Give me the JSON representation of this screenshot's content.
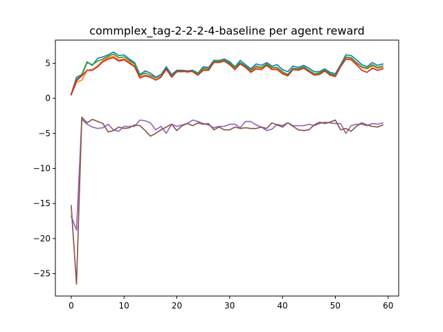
{
  "chart_data": {
    "type": "line",
    "title": "commplex_tag-2-2-2-4-baseline per agent reward",
    "xlabel": "",
    "ylabel": "",
    "xlim": [
      -3,
      62
    ],
    "ylim": [
      -28.2,
      8.3
    ],
    "xticks": [
      0,
      10,
      20,
      30,
      40,
      50,
      60
    ],
    "yticks": [
      5,
      0,
      -5,
      -10,
      -15,
      -20,
      -25
    ],
    "grid": false,
    "colors": [
      "#1f77b4",
      "#ff7f0e",
      "#2ca02c",
      "#d62728",
      "#9467bd",
      "#8c564b"
    ],
    "series": [
      {
        "color": "#1f77b4",
        "values": [
          0.6,
          3.0,
          3.4,
          5.2,
          4.7,
          5.7,
          5.9,
          6.2,
          6.6,
          6.1,
          6.2,
          5.6,
          5.1,
          3.4,
          3.9,
          3.6,
          3.0,
          3.4,
          4.5,
          3.4,
          4.0,
          4.0,
          3.9,
          4.0,
          3.6,
          4.5,
          4.4,
          5.4,
          5.4,
          5.6,
          5.2,
          4.5,
          5.4,
          4.8,
          4.2,
          4.9,
          4.7,
          5.1,
          4.6,
          4.8,
          4.1,
          3.8,
          4.6,
          4.4,
          4.7,
          4.3,
          3.8,
          3.8,
          4.2,
          3.7,
          3.5,
          4.8,
          6.2,
          6.1,
          5.5,
          4.8,
          4.5,
          5.1,
          4.7,
          4.9
        ]
      },
      {
        "color": "#ff7f0e",
        "values": [
          0.5,
          2.3,
          2.6,
          4.0,
          4.1,
          4.6,
          5.4,
          5.8,
          6.0,
          5.5,
          5.6,
          5.2,
          4.6,
          3.1,
          3.3,
          3.1,
          2.6,
          3.1,
          4.1,
          3.1,
          3.8,
          3.9,
          3.7,
          3.9,
          3.5,
          4.2,
          4.1,
          5.2,
          5.2,
          5.4,
          4.9,
          4.3,
          5.0,
          4.5,
          3.9,
          4.4,
          4.3,
          4.8,
          4.3,
          4.3,
          3.7,
          3.3,
          4.2,
          4.1,
          4.4,
          3.9,
          3.4,
          3.5,
          4.0,
          3.4,
          3.2,
          4.6,
          5.8,
          5.7,
          5.0,
          4.4,
          4.2,
          4.6,
          4.3,
          4.4
        ]
      },
      {
        "color": "#2ca02c",
        "values": [
          0.6,
          2.7,
          3.3,
          5.1,
          4.8,
          5.3,
          5.6,
          6.0,
          6.3,
          5.8,
          5.9,
          5.4,
          4.9,
          3.3,
          3.6,
          3.3,
          2.9,
          3.3,
          4.3,
          3.2,
          3.9,
          3.9,
          3.8,
          3.9,
          3.5,
          4.3,
          4.2,
          5.3,
          5.3,
          5.5,
          5.0,
          4.4,
          5.1,
          4.6,
          4.0,
          4.6,
          4.4,
          4.9,
          4.4,
          4.4,
          3.8,
          3.4,
          4.3,
          4.2,
          4.5,
          4.0,
          3.5,
          3.6,
          4.1,
          3.5,
          3.3,
          4.7,
          5.9,
          5.8,
          5.1,
          4.5,
          4.3,
          4.8,
          4.4,
          4.6
        ]
      },
      {
        "color": "#d62728",
        "values": [
          0.5,
          2.5,
          3.2,
          4.0,
          4.0,
          4.5,
          5.2,
          5.6,
          5.8,
          5.3,
          5.5,
          5.0,
          4.5,
          2.9,
          3.2,
          3.0,
          2.6,
          3.0,
          4.2,
          3.0,
          3.8,
          3.8,
          3.9,
          3.8,
          3.3,
          4.0,
          4.0,
          5.1,
          5.1,
          5.3,
          4.8,
          4.1,
          4.9,
          4.4,
          3.7,
          4.2,
          4.1,
          4.7,
          4.1,
          4.1,
          3.5,
          3.2,
          4.1,
          4.0,
          4.3,
          3.8,
          3.3,
          3.4,
          3.9,
          3.3,
          3.1,
          4.5,
          5.6,
          5.5,
          4.8,
          4.0,
          3.7,
          4.3,
          4.0,
          4.2
        ]
      },
      {
        "color": "#9467bd",
        "values": [
          -16.8,
          -18.8,
          -3.0,
          -3.7,
          -4.1,
          -4.3,
          -4.2,
          -3.7,
          -4.5,
          -4.7,
          -4.0,
          -4.0,
          -4.0,
          -3.1,
          -3.2,
          -3.5,
          -4.5,
          -4.0,
          -5.0,
          -3.7,
          -4.0,
          -3.8,
          -3.6,
          -3.1,
          -3.3,
          -3.6,
          -3.8,
          -4.2,
          -4.0,
          -4.0,
          -3.7,
          -3.7,
          -4.2,
          -3.3,
          -3.3,
          -3.8,
          -4.1,
          -4.6,
          -4.4,
          -3.7,
          -3.9,
          -3.5,
          -3.9,
          -3.9,
          -3.9,
          -3.7,
          -3.9,
          -3.6,
          -3.4,
          -3.5,
          -3.6,
          -3.6,
          -5.0,
          -3.9,
          -3.7,
          -3.7,
          -3.9,
          -3.6,
          -3.7,
          -3.5
        ]
      },
      {
        "color": "#8c564b",
        "values": [
          -15.3,
          -26.5,
          -2.7,
          -3.5,
          -3.0,
          -3.3,
          -3.6,
          -4.8,
          -4.6,
          -4.1,
          -4.3,
          -4.2,
          -3.8,
          -3.9,
          -4.6,
          -5.4,
          -5.0,
          -4.5,
          -4.1,
          -3.7,
          -4.6,
          -3.9,
          -3.6,
          -3.9,
          -3.5,
          -3.7,
          -3.6,
          -4.5,
          -4.1,
          -4.5,
          -4.5,
          -4.1,
          -4.3,
          -4.2,
          -4.3,
          -4.3,
          -4.1,
          -4.3,
          -3.5,
          -3.8,
          -4.1,
          -3.5,
          -4.0,
          -4.5,
          -4.6,
          -4.5,
          -3.8,
          -3.4,
          -3.6,
          -3.4,
          -3.1,
          -4.5,
          -4.3,
          -4.7,
          -4.0,
          -3.5,
          -3.8,
          -4.0,
          -4.1,
          -3.8
        ]
      }
    ]
  }
}
